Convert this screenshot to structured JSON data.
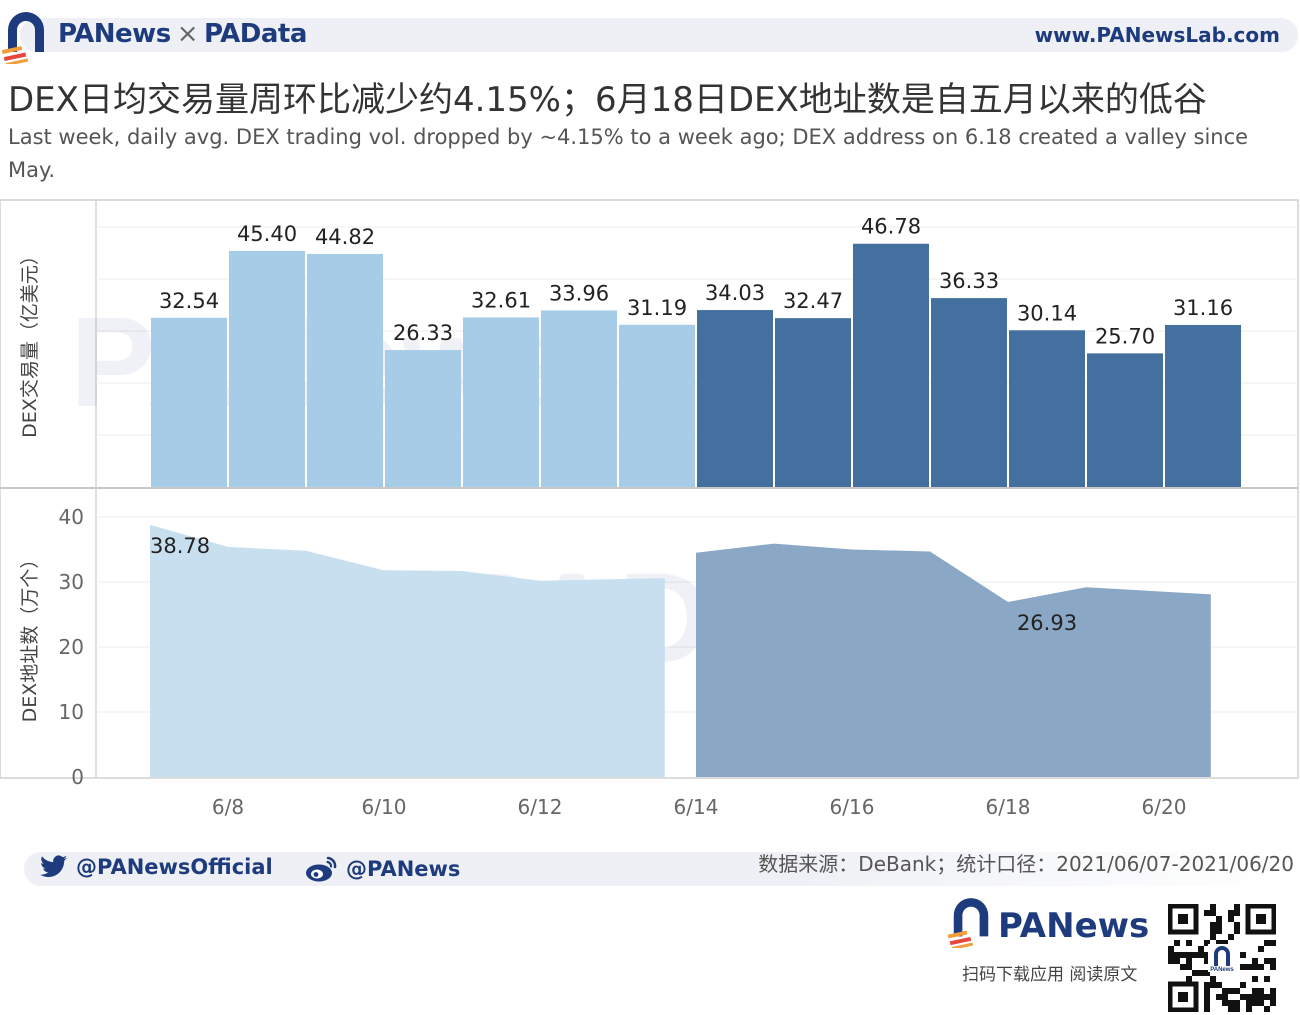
{
  "header": {
    "brand": "PANews",
    "separator": "×",
    "brand2": "PAData",
    "url": "www.PANewsLab.com"
  },
  "title": "DEX日均交易量周环比减少约4.15%；6月18日DEX地址数是自五月以来的低谷",
  "subtitle": "Last week, daily avg. DEX trading vol. dropped by ~4.15% to a week ago; DEX address on 6.18 created a valley since May.",
  "watermarks": [
    "PANews",
    "PAData"
  ],
  "colors": {
    "week1_bar": "#a6cce8",
    "week2_bar": "#44709f",
    "week1_area": "#c8dff0",
    "week2_area": "#8aa7c6",
    "brand": "#1e3c7d",
    "accent_orange": "#f39c3a"
  },
  "chart_data": [
    {
      "type": "bar",
      "ylabel": "DEX交易量（亿美元）",
      "x": [
        "6/7",
        "6/8",
        "6/9",
        "6/10",
        "6/11",
        "6/12",
        "6/13",
        "6/14",
        "6/15",
        "6/16",
        "6/17",
        "6/18",
        "6/19",
        "6/20"
      ],
      "values": [
        32.54,
        45.4,
        44.82,
        26.33,
        32.61,
        33.96,
        31.19,
        34.03,
        32.47,
        46.78,
        36.33,
        30.14,
        25.7,
        31.16
      ],
      "data_labels": [
        "32.54",
        "45.40",
        "44.82",
        "26.33",
        "32.61",
        "33.96",
        "31.19",
        "34.03",
        "32.47",
        "46.78",
        "36.33",
        "30.14",
        "25.70",
        "31.16"
      ],
      "week_split_index": 7,
      "ylim": [
        0,
        50
      ],
      "grid": true
    },
    {
      "type": "area",
      "ylabel": "DEX地址数（万个）",
      "series": [
        {
          "x": [
            "6/7",
            "6/8",
            "6/9",
            "6/10",
            "6/11",
            "6/12",
            "6/13"
          ],
          "values": [
            38.78,
            35.4,
            34.8,
            31.8,
            31.7,
            30.2,
            30.6
          ]
        },
        {
          "x": [
            "6/14",
            "6/15",
            "6/16",
            "6/17",
            "6/18",
            "6/19",
            "6/20"
          ],
          "values": [
            34.5,
            35.9,
            35.0,
            34.7,
            26.93,
            29.2,
            28.1
          ]
        }
      ],
      "annotations": [
        {
          "x": "6/7",
          "label": "38.78"
        },
        {
          "x": "6/18",
          "label": "26.93"
        }
      ],
      "yticks": [
        "0",
        "10",
        "20",
        "30",
        "40"
      ],
      "ylim": [
        0,
        41
      ],
      "xticks": [
        "6/8",
        "6/10",
        "6/12",
        "6/14",
        "6/16",
        "6/18",
        "6/20"
      ],
      "grid": true
    }
  ],
  "footer": {
    "twitter": "@PANewsOfficial",
    "weibo": "@PANews",
    "source": "数据来源：DeBank；统计口径：2021/06/07-2021/06/20",
    "brand": "PANews",
    "app_note": "扫码下载应用  阅读原文",
    "qr_brand": "PANews"
  }
}
